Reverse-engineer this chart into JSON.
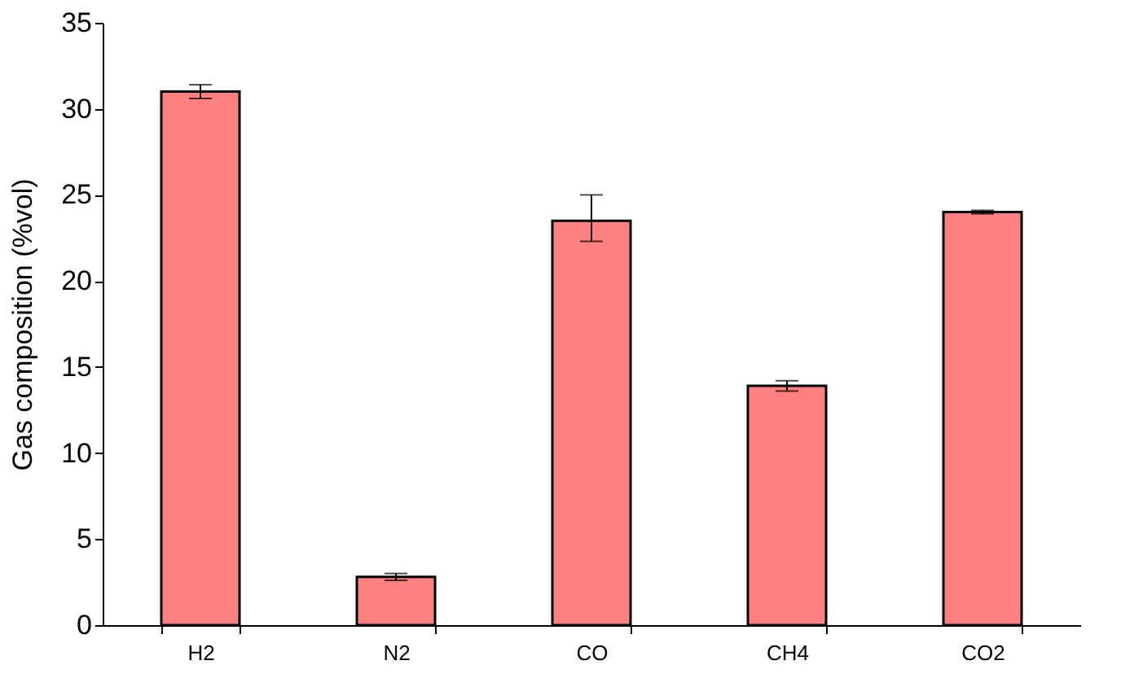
{
  "chart_data": {
    "type": "bar",
    "ylabel": "Gas composition (%vol)",
    "categories": [
      "H2",
      "N2",
      "CO",
      "CH4",
      "CO2"
    ],
    "values": [
      31.0,
      2.8,
      23.5,
      13.9,
      24.0
    ],
    "errors": [
      0.4,
      0.2,
      [
        22.3,
        25.0
      ],
      0.3,
      0.1
    ],
    "color": "#ff8080",
    "ylim": [
      0,
      35
    ],
    "yticks": [
      0,
      5,
      10,
      15,
      20,
      25,
      30,
      35
    ],
    "grid": false
  }
}
